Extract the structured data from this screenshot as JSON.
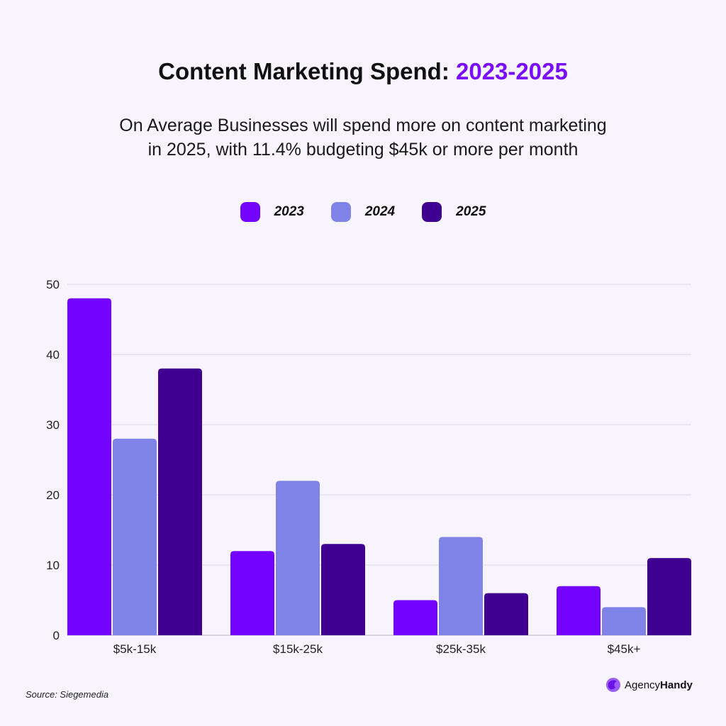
{
  "title": {
    "main": "Content Marketing Spend: ",
    "accent": "2023-2025"
  },
  "subtitle": [
    "On Average Businesses will spend more on content marketing",
    "in 2025, with 11.4% budgeting $45k or more per month"
  ],
  "source": "Source: Siegemedia",
  "logo": {
    "part1": "Agency",
    "part2": "Handy"
  },
  "colors": {
    "background": "#F7F4FD",
    "accent": "#7A0CFF",
    "2023": "#7303FF",
    "2024": "#7F83E8",
    "2025": "#3F0092"
  },
  "chart_data": {
    "type": "bar",
    "categories": [
      "$5k-15k",
      "$15k-25k",
      "$25k-35k",
      "$45k+"
    ],
    "series": [
      {
        "name": "2023",
        "values": [
          48,
          12,
          5,
          7
        ]
      },
      {
        "name": "2024",
        "values": [
          28,
          22,
          14,
          4
        ]
      },
      {
        "name": "2025",
        "values": [
          38,
          13,
          6,
          11
        ]
      }
    ],
    "ylim": [
      0,
      50
    ],
    "yticks": [
      "0",
      "10",
      "20",
      "30",
      "40",
      "50"
    ],
    "grid": true,
    "legend": "top-center",
    "xlabel": "",
    "ylabel": ""
  }
}
